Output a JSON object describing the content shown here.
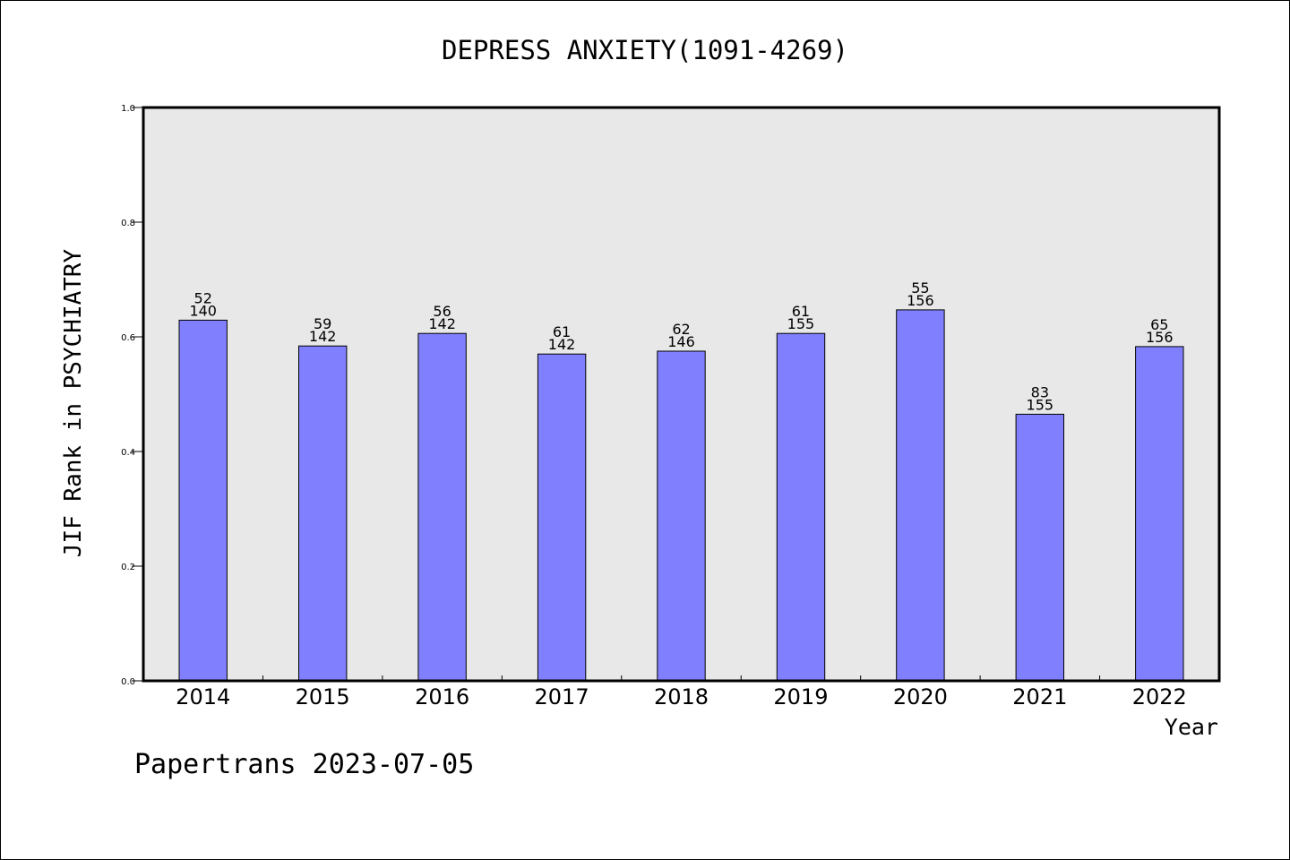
{
  "chart_data": {
    "type": "bar",
    "title": "DEPRESS ANXIETY(1091-4269)",
    "xlabel": "Year",
    "ylabel": "JIF Rank in PSYCHIATRY",
    "ylim": [
      0,
      1.0
    ],
    "yticks": [
      "0.0",
      "0.2",
      "0.4",
      "0.6",
      "0.8",
      "1.0"
    ],
    "categories": [
      "2014",
      "2015",
      "2016",
      "2017",
      "2018",
      "2019",
      "2020",
      "2021",
      "2022"
    ],
    "values": [
      0.629,
      0.584,
      0.606,
      0.57,
      0.575,
      0.606,
      0.647,
      0.465,
      0.583
    ],
    "labels_top": [
      "52",
      "59",
      "56",
      "61",
      "62",
      "61",
      "55",
      "83",
      "65"
    ],
    "labels_bottom": [
      "140",
      "142",
      "142",
      "142",
      "146",
      "155",
      "156",
      "155",
      "156"
    ],
    "bar_color": "#8080ff",
    "plot_background": "#e8e8e8",
    "grid": false,
    "legend": "none"
  },
  "footer": {
    "source": "Papertrans 2023-07-05"
  }
}
